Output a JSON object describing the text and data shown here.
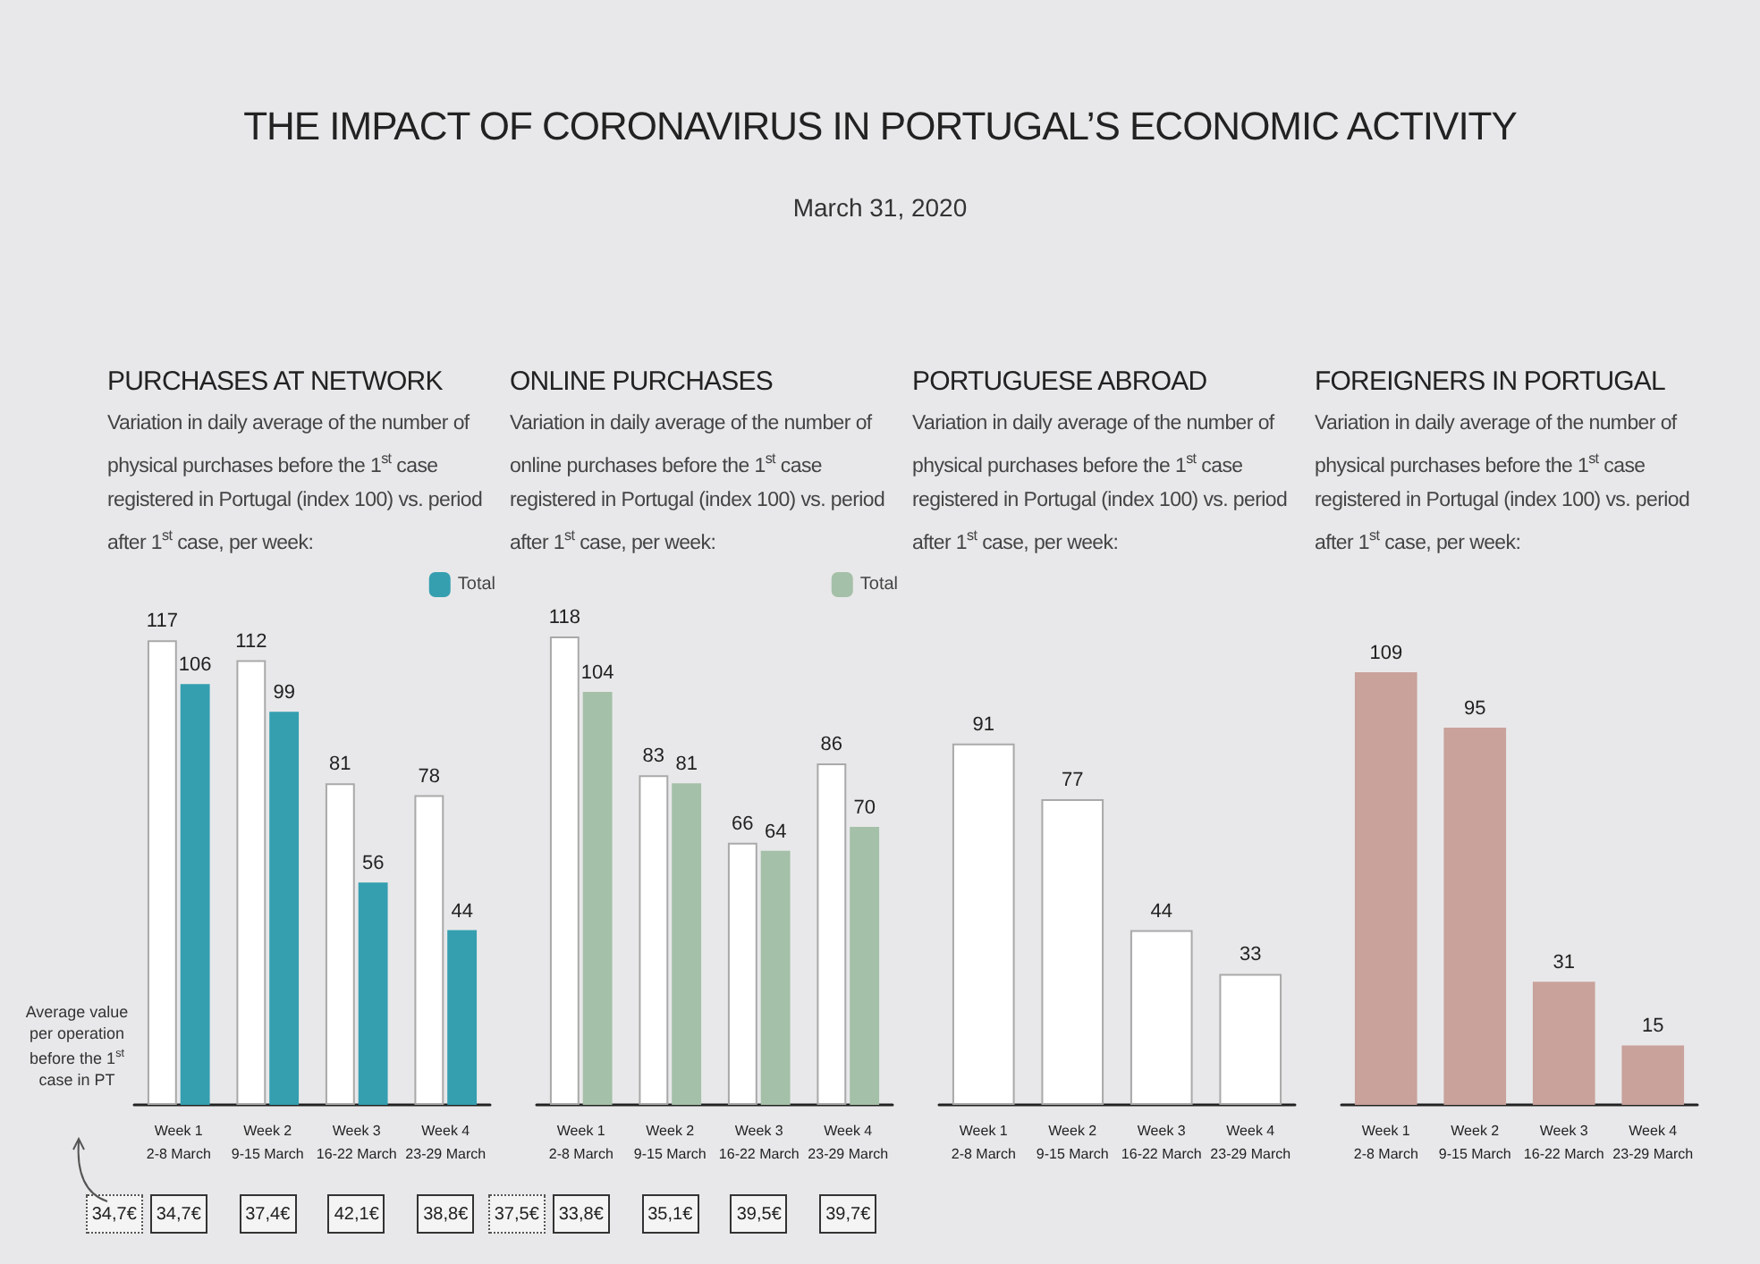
{
  "chart_data": [
    {
      "type": "bar",
      "title": "PURCHASES AT NETWORK",
      "subtitle": "Variation in daily average of the number of physical purchases before the 1$^{st}$ case registered in Portugal (index 100) vs. period after 1$^{st}$ case, per week:",
      "categories": [
        "Week 1\n2-8 March",
        "Week 2\n9-15 March",
        "Week 3\n16-22 March",
        "Week 4\n23-29 March"
      ],
      "series": [
        {
          "color": "#ffffff",
          "values": [
            117,
            112,
            81,
            78
          ]
        },
        {
          "name": "Total",
          "color": "#359fb0",
          "values": [
            106,
            99,
            56,
            44
          ]
        }
      ],
      "data_labels": true,
      "legend": "top right",
      "grid": false,
      "tick_labels": "x",
      "annotations": [
        "THE IMPACT OF CORONAVIRUS IN PORTUGAL’S ECONOMIC ACTIVITY",
        "March 31, 2020",
        "Average value per operation before the 1$^{st}$ case in PT",
        "34,7€",
        "34,7€",
        "37,4€",
        "42,1€",
        "38,8€"
      ]
    },
    {
      "type": "bar",
      "title": "ONLINE PURCHASES",
      "subtitle": "Variation in daily average of the number of online purchases before the 1$^{st}$ case registered in Portugal (index 100) vs. period after 1$^{st}$ case, per week:",
      "categories": [
        "Week 1\n2-8 March",
        "Week 2\n9-15 March",
        "Week 3\n16-22 March",
        "Week 4\n23-29 March"
      ],
      "series": [
        {
          "color": "#ffffff",
          "values": [
            118,
            83,
            66,
            86
          ]
        },
        {
          "name": "Total",
          "color": "#a5c0a8",
          "values": [
            104,
            81,
            64,
            70
          ]
        }
      ],
      "data_labels": true,
      "legend": "top right",
      "grid": false,
      "tick_labels": "x",
      "annotations": [
        "37,5€",
        "33,8€",
        "35,1€",
        "39,5€",
        "39,7€"
      ]
    },
    {
      "type": "bar",
      "title": "PORTUGUESE ABROAD",
      "subtitle": "Variation in daily average of the number of physical purchases before the 1$^{st}$ case registered in Portugal (index 100) vs. period after 1$^{st}$ case, per week:",
      "categories": [
        "Week 1\n2-8 March",
        "Week 2\n9-15 March",
        "Week 3\n16-22 March",
        "Week 4\n23-29 March"
      ],
      "series": [
        {
          "color": "#ffffff",
          "values": [
            91,
            77,
            44,
            33
          ]
        }
      ],
      "data_labels": true,
      "grid": false,
      "tick_labels": "x"
    },
    {
      "type": "bar",
      "title": "FOREIGNERS IN PORTUGAL",
      "subtitle": "Variation in daily average of the number of physical purchases before the 1$^{st}$ case registered in Portugal (index 100) vs. period after 1$^{st}$ case, per week:",
      "categories": [
        "Week 1\n2-8 March",
        "Week 2\n9-15 March",
        "Week 3\n16-22 March",
        "Week 4\n23-29 March"
      ],
      "series": [
        {
          "color": "#c9a29b",
          "values": [
            109,
            95,
            31,
            15
          ]
        }
      ],
      "data_labels": true,
      "grid": false,
      "tick_labels": "x"
    }
  ]
}
